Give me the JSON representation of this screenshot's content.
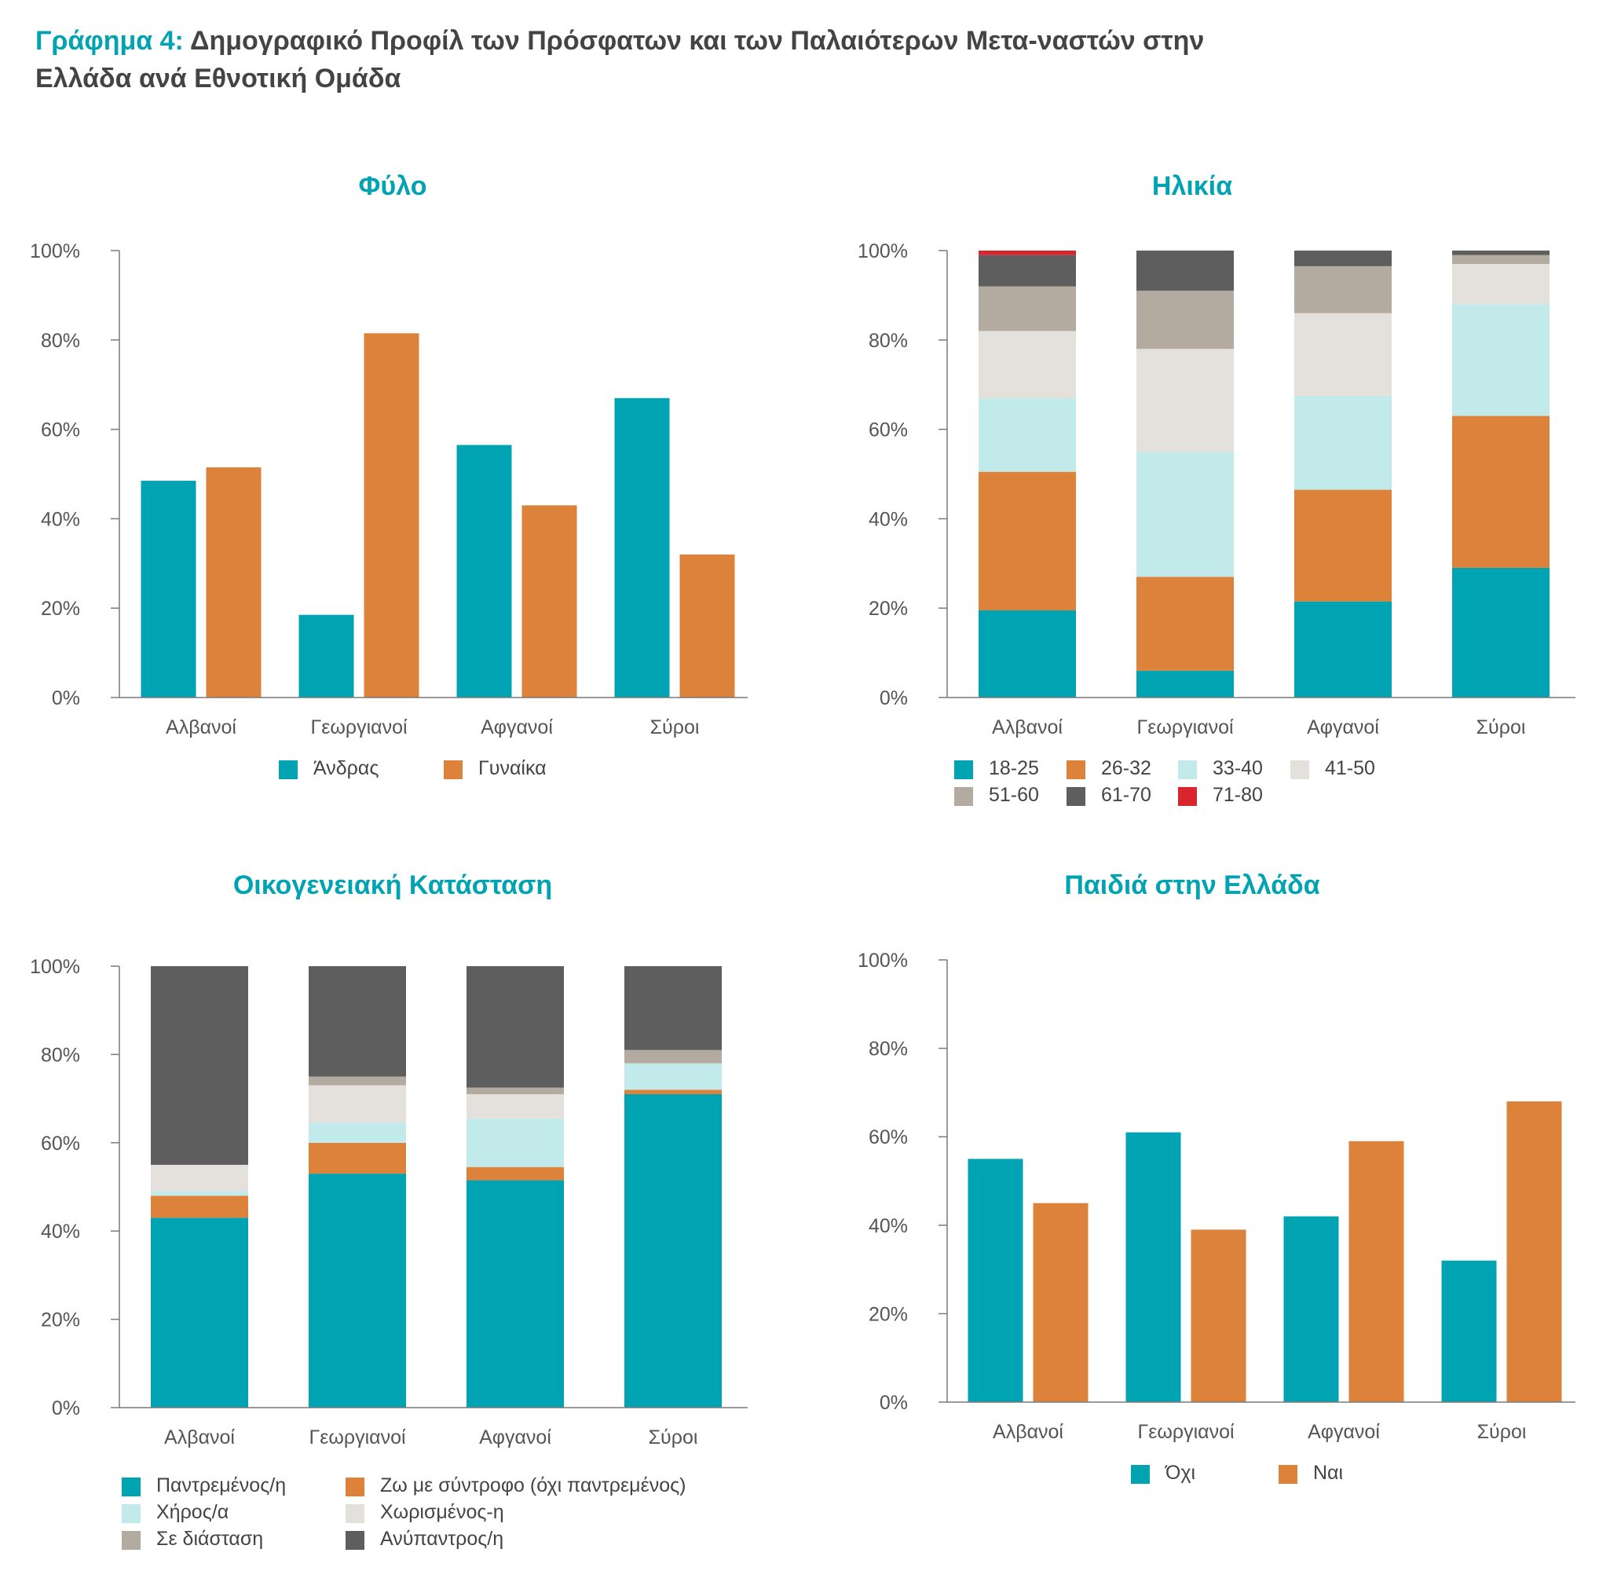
{
  "figure": {
    "title_lead": "Γράφημα 4:",
    "title_rest": "Δημογραφικό Προφίλ των Πρόσφατων και των Παλαιότερων Μετα-ναστών στην Ελλάδα ανά Εθνοτική Ομάδα"
  },
  "colors": {
    "teal": "#00a3b1",
    "orange": "#dc823b",
    "light_cyan": "#c3eaeb",
    "light_grey": "#e4e0dc",
    "taupe": "#b3aaa0",
    "dark_grey": "#5e5e5e",
    "red": "#d9262e"
  },
  "chart_data": [
    {
      "id": "sex",
      "type": "bar",
      "title": "Φύλο",
      "categories": [
        "Αλβανοί",
        "Γεωργιανοί",
        "Αφγανοί",
        "Σύροι"
      ],
      "yticks": [
        "0%",
        "20%",
        "40%",
        "60%",
        "80%",
        "100%"
      ],
      "ylim": [
        0,
        100
      ],
      "series": [
        {
          "name": "Άνδρας",
          "color": "#00a3b1",
          "values": [
            48.5,
            18.5,
            56.5,
            67
          ]
        },
        {
          "name": "Γυναίκα",
          "color": "#dc823b",
          "values": [
            51.5,
            81.5,
            43,
            32
          ]
        }
      ],
      "legend_position": "bottom"
    },
    {
      "id": "age",
      "type": "stacked-bar",
      "title": "Ηλικία",
      "categories": [
        "Αλβανοί",
        "Γεωργιανοί",
        "Αφγανοί",
        "Σύροι"
      ],
      "yticks": [
        "0%",
        "20%",
        "40%",
        "60%",
        "80%",
        "100%"
      ],
      "ylim": [
        0,
        100
      ],
      "series": [
        {
          "name": "18-25",
          "color": "#00a3b1",
          "values": [
            19.5,
            6,
            21.5,
            29
          ]
        },
        {
          "name": "26-32",
          "color": "#dc823b",
          "values": [
            31,
            21,
            25,
            34
          ]
        },
        {
          "name": "33-40",
          "color": "#c3eaeb",
          "values": [
            16.5,
            28,
            21,
            25
          ]
        },
        {
          "name": "41-50",
          "color": "#e4e0dc",
          "values": [
            15,
            23,
            18.5,
            9
          ]
        },
        {
          "name": "51-60",
          "color": "#b3aaa0",
          "values": [
            10,
            13,
            10.5,
            2
          ]
        },
        {
          "name": "61-70",
          "color": "#5e5e5e",
          "values": [
            7,
            9,
            3.5,
            1
          ]
        },
        {
          "name": "71-80",
          "color": "#d9262e",
          "values": [
            1,
            0,
            0,
            0
          ]
        }
      ],
      "legend_position": "bottom"
    },
    {
      "id": "marital",
      "type": "stacked-bar",
      "title": "Οικογενειακή Κατάσταση",
      "categories": [
        "Αλβανοί",
        "Γεωργιανοί",
        "Αφγανοί",
        "Σύροι"
      ],
      "yticks": [
        "0%",
        "20%",
        "40%",
        "60%",
        "80%",
        "100%"
      ],
      "ylim": [
        0,
        100
      ],
      "series": [
        {
          "name": "Παντρεμένος/η",
          "color": "#00a3b1",
          "values": [
            43,
            53,
            51.5,
            71
          ]
        },
        {
          "name": "Ζω με σύντροφο (όχι παντρεμένος)",
          "color": "#dc823b",
          "values": [
            5,
            7,
            3,
            1
          ]
        },
        {
          "name": "Χήρος/α",
          "color": "#c3eaeb",
          "values": [
            1,
            4.5,
            11,
            6
          ]
        },
        {
          "name": "Χωρισμένος-η",
          "color": "#e4e0dc",
          "values": [
            6,
            8.5,
            5.5,
            0
          ]
        },
        {
          "name": "Σε διάσταση",
          "color": "#b3aaa0",
          "values": [
            0,
            2,
            1.5,
            3
          ]
        },
        {
          "name": "Ανύπαντρος/η",
          "color": "#5e5e5e",
          "values": [
            45,
            25,
            27.5,
            19
          ]
        }
      ],
      "legend_position": "bottom"
    },
    {
      "id": "children",
      "type": "bar",
      "title": "Παιδιά στην Ελλάδα",
      "categories": [
        "Αλβανοί",
        "Γεωργιανοί",
        "Αφγανοί",
        "Σύροι"
      ],
      "yticks": [
        "0%",
        "20%",
        "40%",
        "60%",
        "80%",
        "100%"
      ],
      "ylim": [
        0,
        100
      ],
      "series": [
        {
          "name": "Όχι",
          "color": "#00a3b1",
          "values": [
            55,
            61,
            42,
            32
          ]
        },
        {
          "name": "Ναι",
          "color": "#dc823b",
          "values": [
            45,
            39,
            59,
            68
          ]
        }
      ],
      "legend_position": "bottom"
    }
  ]
}
